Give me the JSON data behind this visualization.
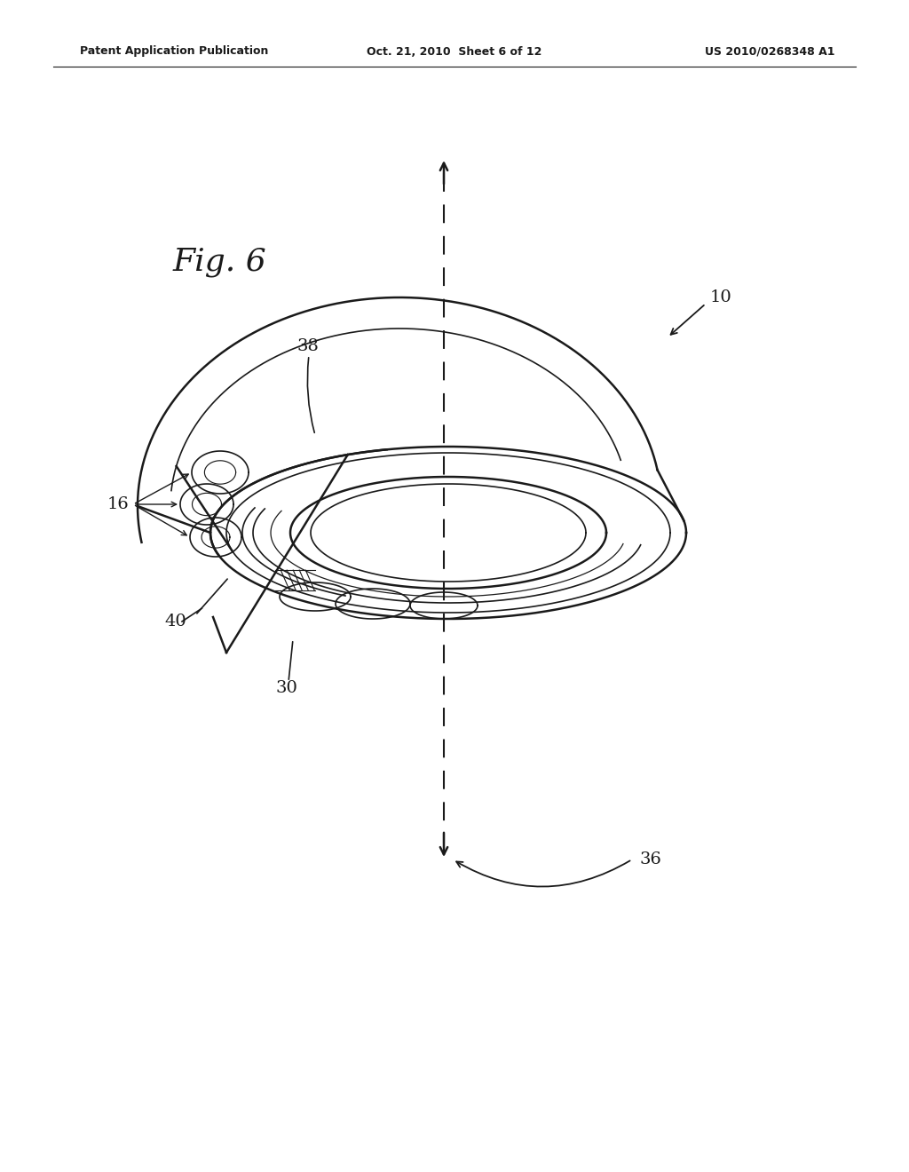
{
  "header_left": "Patent Application Publication",
  "header_center": "Oct. 21, 2010  Sheet 6 of 12",
  "header_right": "US 2010/0268348 A1",
  "fig_label": "Fig. 6",
  "bg_color": "#ffffff",
  "line_color": "#1a1a1a",
  "dpi": 100,
  "figsize": [
    10.24,
    13.2
  ]
}
